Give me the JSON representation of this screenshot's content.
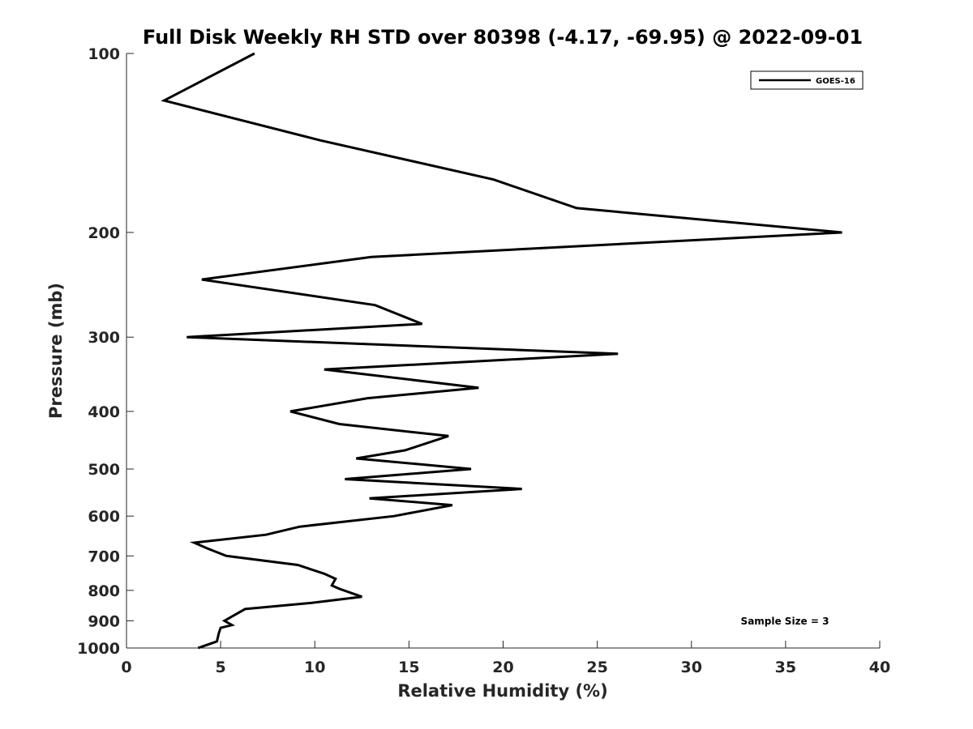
{
  "chart_data": {
    "type": "line",
    "title": "Full Disk Weekly RH STD over 80398 (-4.17, -69.95) @ 2022-09-01",
    "xlabel": "Relative Humidity (%)",
    "ylabel": "Pressure (mb)",
    "xlim": [
      0,
      40
    ],
    "ylim": [
      100,
      1000
    ],
    "yscale": "log",
    "ydirection": "reverse",
    "x_ticks": [
      0,
      5,
      10,
      15,
      20,
      25,
      30,
      35,
      40
    ],
    "y_ticks": [
      100,
      200,
      300,
      400,
      500,
      600,
      700,
      800,
      900,
      1000
    ],
    "grid": false,
    "legend_position": "top-right",
    "annotation": "Sample Size = 3",
    "series": [
      {
        "name": "GOES-16",
        "color": "#000000",
        "x": [
          6.8,
          2.0,
          10.3,
          19.5,
          23.9,
          38.0,
          13.0,
          4.0,
          13.2,
          15.7,
          3.2,
          26.1,
          10.5,
          18.7,
          12.8,
          8.7,
          11.3,
          17.1,
          14.8,
          12.2,
          18.3,
          11.6,
          21.0,
          12.9,
          17.3,
          14.2,
          9.2,
          7.4,
          3.6,
          4.3,
          5.3,
          9.1,
          10.5,
          11.1,
          10.9,
          11.3,
          12.5,
          9.8,
          6.3,
          5.2,
          5.6,
          5.0,
          4.9,
          4.8,
          3.8
        ],
        "y": [
          100,
          120,
          140,
          163,
          182,
          200,
          220,
          240,
          265,
          285,
          300,
          320,
          340,
          365,
          380,
          400,
          420,
          440,
          465,
          480,
          500,
          520,
          540,
          560,
          575,
          600,
          625,
          645,
          665,
          680,
          700,
          725,
          750,
          765,
          785,
          795,
          820,
          840,
          860,
          900,
          915,
          925,
          945,
          975,
          1000
        ]
      }
    ]
  }
}
